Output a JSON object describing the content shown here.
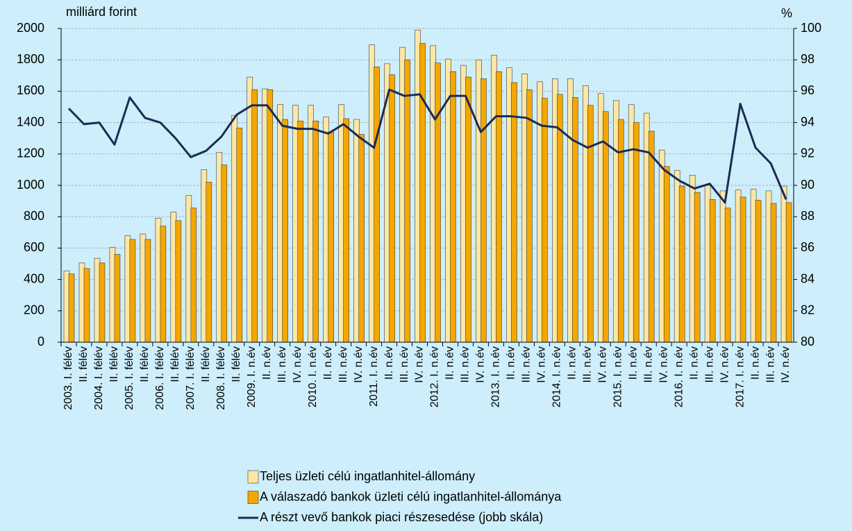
{
  "chart_data": {
    "type": "bar",
    "y_label": "milliárd forint",
    "y2_label": "%",
    "categories": [
      "2003. I. félév",
      "II. félév",
      "2004. I. félév",
      "II. félév",
      "2005. I. félév",
      "II. félév",
      "2006. I. félév",
      "II. félév",
      "2007. I. félév",
      "II. félév",
      "2008. I. félév",
      "II. félév",
      "2009. I. n.év",
      "II. n.év",
      "III. n.év",
      "IV. n.év",
      "2010. I. n.év",
      "II. n.év",
      "III. n.év",
      "IV. n.év",
      "2011. I. n.év",
      "II. n.év",
      "III. n.év",
      "IV. n.év",
      "2012. I. n.év",
      "II. n.év",
      "III. n.év",
      "IV. n.év",
      "2013. I. n.év",
      "II. n.év",
      "III. n.év",
      "IV. n.év",
      "2014. I. n.év",
      "II. n.év",
      "III. n.év",
      "IV. n.év",
      "2015. I. n.év",
      "II. n.év",
      "III. n.év",
      "IV. n.év",
      "2016. I. n.év",
      "II. n.év",
      "III. n.év",
      "IV. n.év",
      "2017. I. n.év",
      "II. n.év",
      "III. n.év",
      "IV. n.év"
    ],
    "series": [
      {
        "name": "Teljes üzleti célú ingatlanhitel-állomány",
        "color": "#fde7a4",
        "values": [
          455,
          505,
          535,
          605,
          680,
          690,
          790,
          830,
          935,
          1100,
          1210,
          1445,
          1690,
          1615,
          1515,
          1510,
          1510,
          1435,
          1515,
          1420,
          1895,
          1775,
          1880,
          1990,
          1890,
          1805,
          1765,
          1800,
          1830,
          1750,
          1710,
          1660,
          1680,
          1680,
          1635,
          1585,
          1540,
          1515,
          1460,
          1225,
          1095,
          1065,
          1000,
          965,
          970,
          975,
          965,
          995
        ]
      },
      {
        "name": "A válaszadó bankok üzleti célú ingatlanhitel-állománya",
        "color": "#f5a700",
        "values": [
          435,
          470,
          505,
          560,
          655,
          655,
          740,
          775,
          855,
          1020,
          1130,
          1365,
          1610,
          1610,
          1420,
          1410,
          1410,
          1340,
          1425,
          1325,
          1755,
          1705,
          1800,
          1905,
          1780,
          1725,
          1690,
          1680,
          1725,
          1655,
          1610,
          1555,
          1580,
          1560,
          1510,
          1470,
          1420,
          1400,
          1345,
          1120,
          995,
          955,
          910,
          855,
          925,
          905,
          885,
          890
        ]
      },
      {
        "name": "A részt vevő bankok piaci részesedése (jobb skála)",
        "color": "#1b2b55",
        "type": "line",
        "axis": "y2",
        "values": [
          94.9,
          93.9,
          94.0,
          92.6,
          95.6,
          94.3,
          94.0,
          93.0,
          91.8,
          92.2,
          93.1,
          94.5,
          95.1,
          95.1,
          93.8,
          93.6,
          93.6,
          93.3,
          93.9,
          93.1,
          92.4,
          96.1,
          95.7,
          95.8,
          94.2,
          95.7,
          95.7,
          93.4,
          94.4,
          94.4,
          94.3,
          93.8,
          93.7,
          92.9,
          92.4,
          92.8,
          92.1,
          92.3,
          92.1,
          91.0,
          90.3,
          89.8,
          90.1,
          88.9,
          95.2,
          92.4,
          91.4,
          89.1
        ]
      }
    ],
    "ylim": [
      0,
      2000
    ],
    "yticks": [
      0,
      200,
      400,
      600,
      800,
      1000,
      1200,
      1400,
      1600,
      1800,
      2000
    ],
    "y2lim": [
      80,
      100
    ],
    "y2ticks": [
      80,
      82,
      84,
      86,
      88,
      90,
      92,
      94,
      96,
      98,
      100
    ],
    "grid": true
  }
}
